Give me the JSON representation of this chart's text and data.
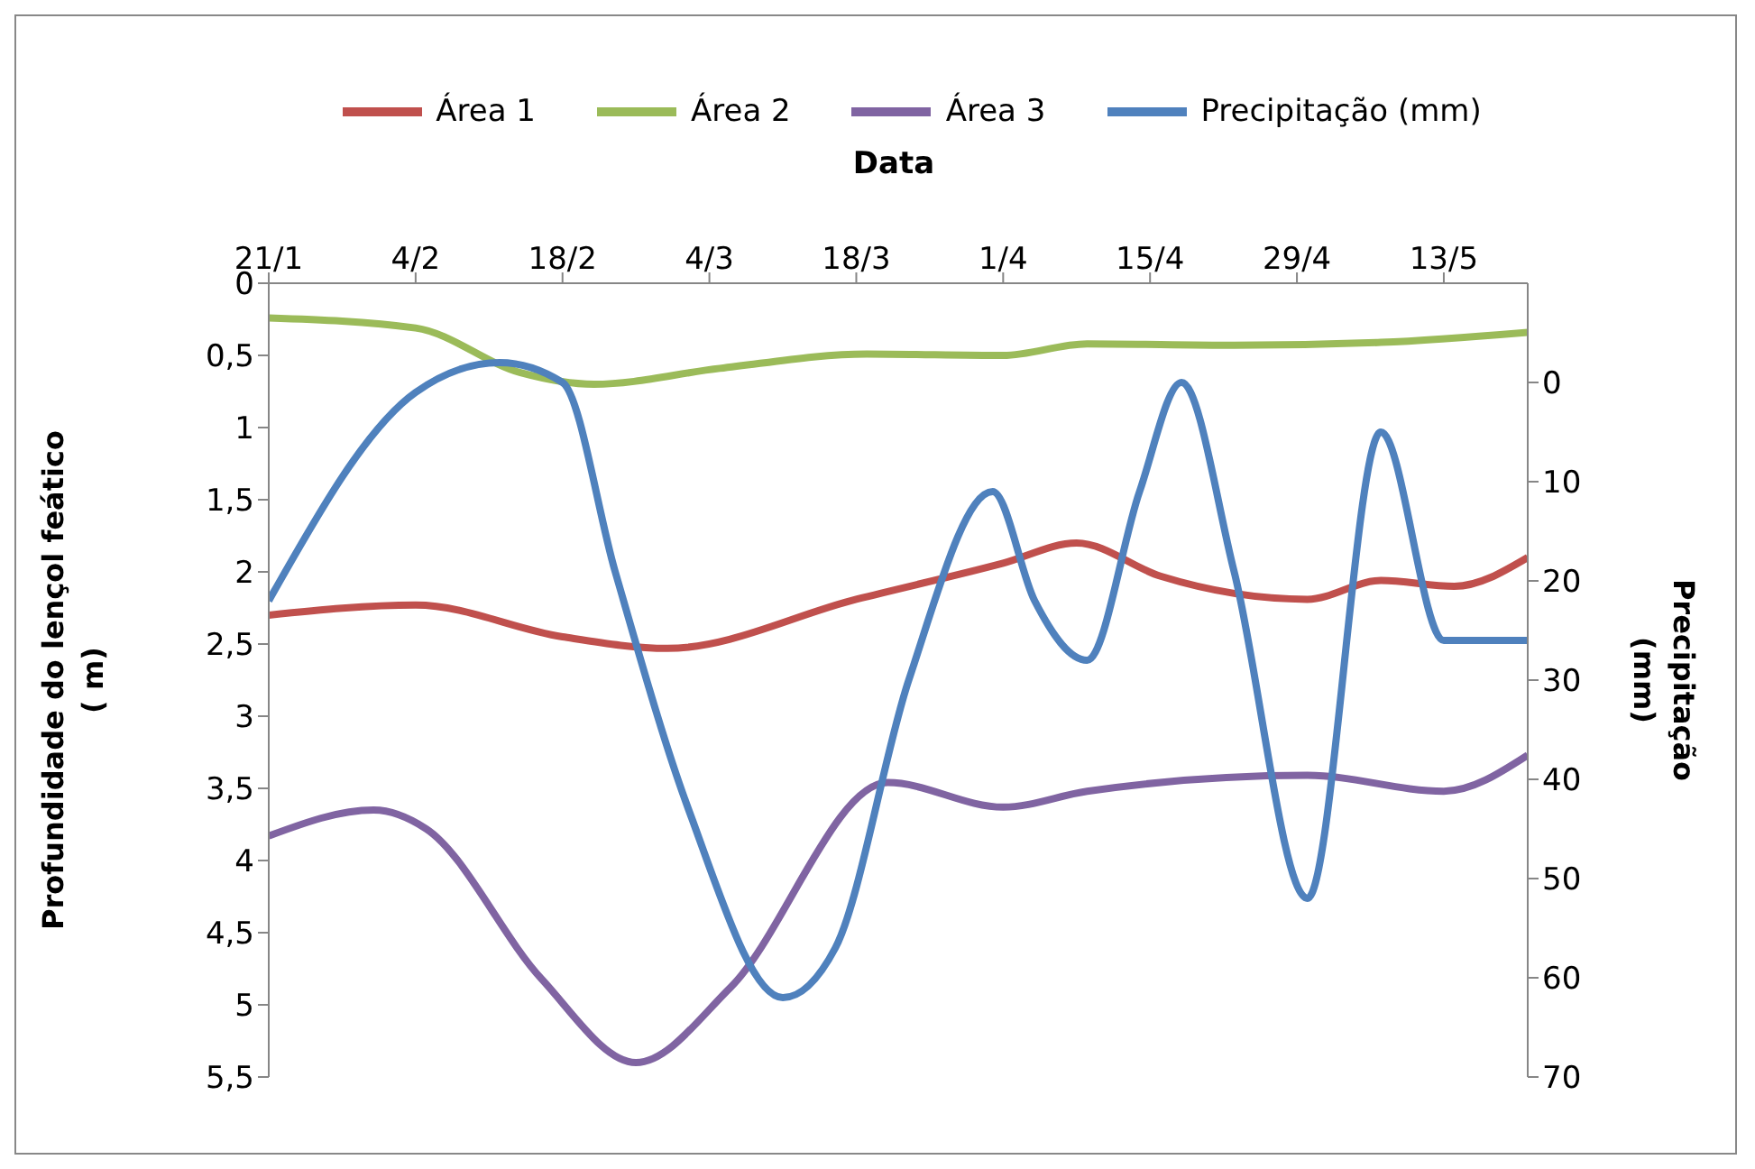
{
  "chart_data": {
    "type": "line",
    "xlabel": "Data",
    "ylabel": "Profundidade do lençol feático ( m)",
    "y2label": "Precipitação (mm)",
    "xlim": [
      "--01-21",
      "--05-21"
    ],
    "xticks": [
      {
        "value": "--01-21",
        "label": "21/1"
      },
      {
        "value": "--02-04",
        "label": "4/2"
      },
      {
        "value": "--02-18",
        "label": "18/2"
      },
      {
        "value": "--03-04",
        "label": "4/3"
      },
      {
        "value": "--03-18",
        "label": "18/3"
      },
      {
        "value": "--04-01",
        "label": "1/4"
      },
      {
        "value": "--04-15",
        "label": "15/4"
      },
      {
        "value": "--04-29",
        "label": "29/4"
      },
      {
        "value": "--05-13",
        "label": "13/5"
      }
    ],
    "ylim": [
      5.5,
      0
    ],
    "yticks": [
      0,
      {
        "value": 0.5,
        "label": "0,5"
      },
      1,
      {
        "value": 1.5,
        "label": "1,5"
      },
      2,
      {
        "value": 2.5,
        "label": "2,5"
      },
      3,
      {
        "value": 3.5,
        "label": "3,5"
      },
      4,
      {
        "value": 4.5,
        "label": "4,5"
      },
      5,
      {
        "value": 5.5,
        "label": "5,5"
      }
    ],
    "y2lim": [
      70,
      -10
    ],
    "y2ticks": [
      0,
      10,
      20,
      30,
      40,
      50,
      60,
      70
    ],
    "legend": "top",
    "marker": "none",
    "line_style": "solid",
    "series": [
      {
        "name": "Área 1",
        "color": "#c0504d",
        "x": [
          "--01-21",
          "--02-04",
          "--02-18",
          "--02-28",
          "--03-18",
          "--04-01",
          "--04-08",
          "--04-16",
          "--04-30",
          "--05-07",
          "--05-14",
          "--05-21"
        ],
        "values": [
          2.3,
          2.23,
          2.45,
          2.53,
          2.19,
          1.94,
          1.8,
          2.03,
          2.19,
          2.06,
          2.1,
          1.9
        ]
      },
      {
        "name": "Área 2",
        "color": "#9bbb59",
        "x": [
          "--01-21",
          "--02-04",
          "--02-14",
          "--02-21",
          "--03-05",
          "--03-19",
          "--04-01",
          "--04-09",
          "--04-23",
          "--05-07",
          "--05-21"
        ],
        "values": [
          0.24,
          0.31,
          0.62,
          0.7,
          0.59,
          0.49,
          0.5,
          0.42,
          0.43,
          0.41,
          0.34
        ]
      },
      {
        "name": "Área 3",
        "color": "#8064a2",
        "x": [
          "--01-21",
          "--01-31",
          "--02-05",
          "--02-16",
          "--02-25",
          "--03-06",
          "--03-21",
          "--04-01",
          "--04-09",
          "--04-30",
          "--05-13",
          "--05-21"
        ],
        "values": [
          3.83,
          3.65,
          3.78,
          4.82,
          5.4,
          4.88,
          3.46,
          3.63,
          3.52,
          3.41,
          3.52,
          3.27
        ]
      },
      {
        "name": "Precipitação (mm)",
        "color": "#4f81bd",
        "axis": "y2",
        "x": [
          "--01-21",
          "--02-04",
          "--02-12",
          "--02-18",
          "--02-23",
          "--03-02",
          "--03-11",
          "--03-16",
          "--03-23",
          "--03-31",
          "--04-04",
          "--04-09",
          "--04-14",
          "--04-18",
          "--04-23",
          "--04-30",
          "--05-07",
          "--05-13",
          "--05-21"
        ],
        "values": [
          22,
          1,
          -2,
          0,
          19,
          43,
          62,
          57,
          30,
          11,
          22,
          28,
          11,
          0,
          19,
          52,
          5,
          26,
          26
        ]
      }
    ]
  }
}
